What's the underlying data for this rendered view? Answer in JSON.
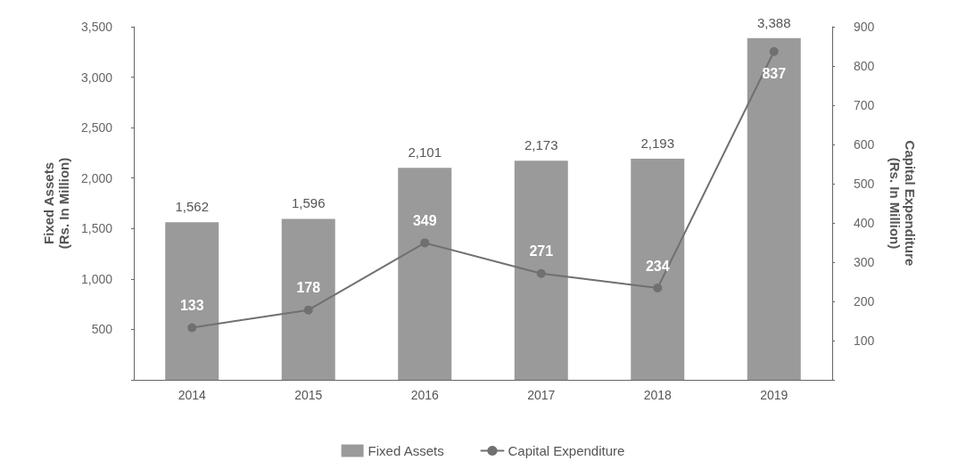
{
  "chart_data": {
    "type": "bar",
    "categories": [
      "2014",
      "2015",
      "2016",
      "2017",
      "2018",
      "2019"
    ],
    "ylabel": "Fixed Assets\n(Rs. In Million)",
    "y2label": "Capital Expenditure\n(Rs. In Million)",
    "series": [
      {
        "name": "Fixed Assets",
        "color": "#9a9a9a",
        "values": [
          1562,
          1596,
          2101,
          2173,
          2193,
          3388
        ],
        "value_labels": [
          "1,562",
          "1,596",
          "2,101",
          "2,173",
          "2,193",
          "3,388"
        ]
      },
      {
        "name": "Capital Expenditure",
        "type": "line",
        "axis": "y2",
        "color": "#707070",
        "marker": "circle",
        "values": [
          133,
          178,
          349,
          271,
          234,
          837
        ],
        "value_labels": [
          "133",
          "178",
          "349",
          "271",
          "234",
          "837"
        ]
      }
    ],
    "ylim": [
      0,
      3500
    ],
    "yticks": [
      {
        "value": 0,
        "label": null
      },
      500,
      {
        "value": 1000,
        "label": "1,000"
      },
      {
        "value": 1500,
        "label": "1,500"
      },
      {
        "value": 2000,
        "label": "2,000"
      },
      {
        "value": 2500,
        "label": "2,500"
      },
      {
        "value": 3000,
        "label": "3,000"
      },
      {
        "value": 3500,
        "label": "3,500"
      }
    ],
    "y2lim": [
      0,
      900
    ],
    "y2ticks": [
      {
        "value": 0,
        "label": null
      },
      100,
      200,
      300,
      400,
      500,
      600,
      700,
      800,
      900
    ],
    "grid": false,
    "legend": "bottom"
  }
}
